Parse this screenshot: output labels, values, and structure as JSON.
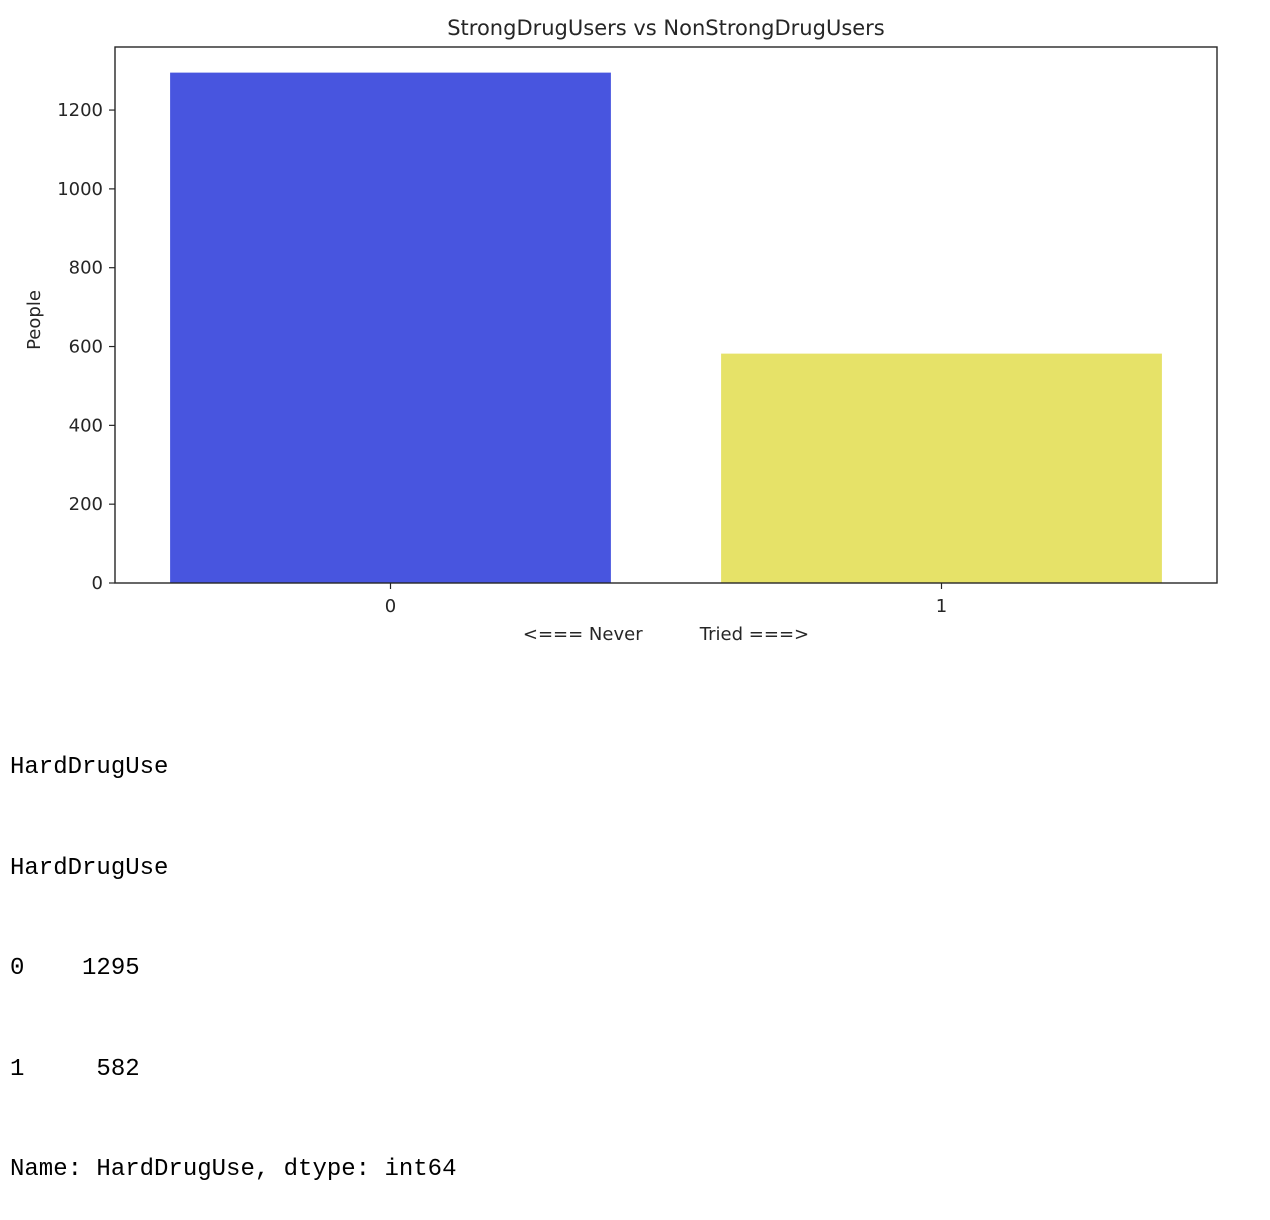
{
  "chart_data": {
    "type": "bar",
    "title": "StrongDrugUsers vs NonStrongDrugUsers",
    "xlabel": "<=== Never          Tried ===>",
    "ylabel": "People",
    "categories": [
      "0",
      "1"
    ],
    "values": [
      1295,
      582
    ],
    "colors": [
      "#4855df",
      "#e6e268"
    ],
    "ylim": [
      0,
      1360
    ],
    "yticks": [
      0,
      200,
      400,
      600,
      800,
      1000,
      1200
    ],
    "grid": false
  },
  "output": {
    "lines": [
      "HardDrugUse",
      "HardDrugUse",
      "0    1295",
      "1     582",
      "Name: HardDrugUse, dtype: int64"
    ]
  }
}
